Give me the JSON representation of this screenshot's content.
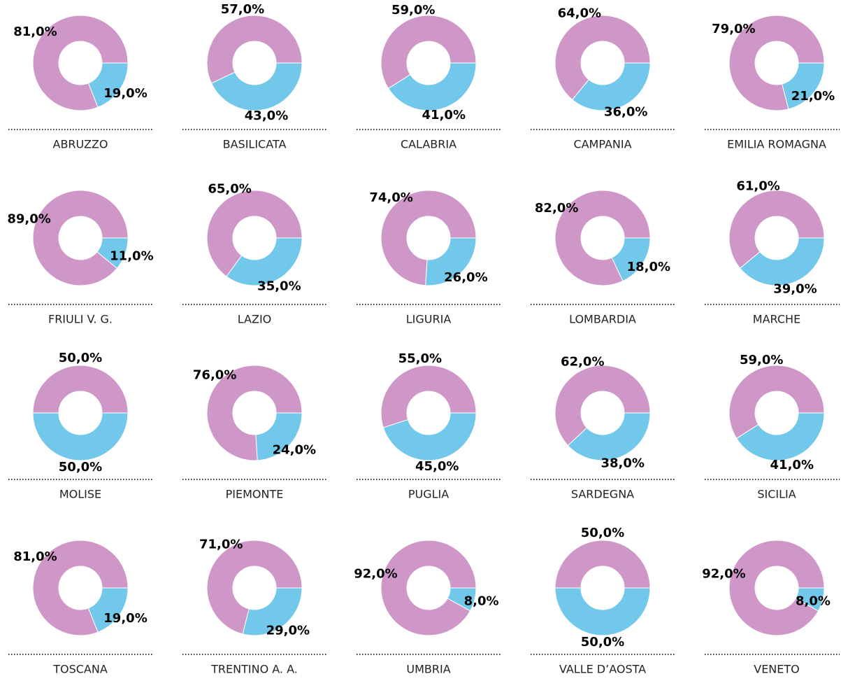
{
  "chart_data": [
    {
      "type": "donut",
      "title": "ABRUZZO",
      "values": [
        81,
        19
      ],
      "value_labels": [
        "81,0%",
        "19,0%"
      ],
      "colors": [
        "#cf97c7",
        "#72c8ea"
      ]
    },
    {
      "type": "donut",
      "title": "BASILICATA",
      "values": [
        57,
        43
      ],
      "value_labels": [
        "57,0%",
        "43,0%"
      ],
      "colors": [
        "#cf97c7",
        "#72c8ea"
      ]
    },
    {
      "type": "donut",
      "title": "CALABRIA",
      "values": [
        59,
        41
      ],
      "value_labels": [
        "59,0%",
        "41,0%"
      ],
      "colors": [
        "#cf97c7",
        "#72c8ea"
      ]
    },
    {
      "type": "donut",
      "title": "CAMPANIA",
      "values": [
        64,
        36
      ],
      "value_labels": [
        "64,0%",
        "36,0%"
      ],
      "colors": [
        "#cf97c7",
        "#72c8ea"
      ]
    },
    {
      "type": "donut",
      "title": "EMILIA ROMAGNA",
      "values": [
        79,
        21
      ],
      "value_labels": [
        "79,0%",
        "21,0%"
      ],
      "colors": [
        "#cf97c7",
        "#72c8ea"
      ]
    },
    {
      "type": "donut",
      "title": "FRIULI V. G.",
      "values": [
        89,
        11
      ],
      "value_labels": [
        "89,0%",
        "11,0%"
      ],
      "colors": [
        "#cf97c7",
        "#72c8ea"
      ]
    },
    {
      "type": "donut",
      "title": "LAZIO",
      "values": [
        65,
        35
      ],
      "value_labels": [
        "65,0%",
        "35,0%"
      ],
      "colors": [
        "#cf97c7",
        "#72c8ea"
      ]
    },
    {
      "type": "donut",
      "title": "LIGURIA",
      "values": [
        74,
        26
      ],
      "value_labels": [
        "74,0%",
        "26,0%"
      ],
      "colors": [
        "#cf97c7",
        "#72c8ea"
      ]
    },
    {
      "type": "donut",
      "title": "LOMBARDIA",
      "values": [
        82,
        18
      ],
      "value_labels": [
        "82,0%",
        "18,0%"
      ],
      "colors": [
        "#cf97c7",
        "#72c8ea"
      ]
    },
    {
      "type": "donut",
      "title": "MARCHE",
      "values": [
        61,
        39
      ],
      "value_labels": [
        "61,0%",
        "39,0%"
      ],
      "colors": [
        "#cf97c7",
        "#72c8ea"
      ]
    },
    {
      "type": "donut",
      "title": "MOLISE",
      "values": [
        50,
        50
      ],
      "value_labels": [
        "50,0%",
        "50,0%"
      ],
      "colors": [
        "#cf97c7",
        "#72c8ea"
      ]
    },
    {
      "type": "donut",
      "title": "PIEMONTE",
      "values": [
        76,
        24
      ],
      "value_labels": [
        "76,0%",
        "24,0%"
      ],
      "colors": [
        "#cf97c7",
        "#72c8ea"
      ]
    },
    {
      "type": "donut",
      "title": "PUGLIA",
      "values": [
        55,
        45
      ],
      "value_labels": [
        "55,0%",
        "45,0%"
      ],
      "colors": [
        "#cf97c7",
        "#72c8ea"
      ]
    },
    {
      "type": "donut",
      "title": "SARDEGNA",
      "values": [
        62,
        38
      ],
      "value_labels": [
        "62,0%",
        "38,0%"
      ],
      "colors": [
        "#cf97c7",
        "#72c8ea"
      ]
    },
    {
      "type": "donut",
      "title": "SICILIA",
      "values": [
        59,
        41
      ],
      "value_labels": [
        "59,0%",
        "41,0%"
      ],
      "colors": [
        "#cf97c7",
        "#72c8ea"
      ]
    },
    {
      "type": "donut",
      "title": "TOSCANA",
      "values": [
        81,
        19
      ],
      "value_labels": [
        "81,0%",
        "19,0%"
      ],
      "colors": [
        "#cf97c7",
        "#72c8ea"
      ]
    },
    {
      "type": "donut",
      "title": "TRENTINO A. A.",
      "values": [
        71,
        29
      ],
      "value_labels": [
        "71,0%",
        "29,0%"
      ],
      "colors": [
        "#cf97c7",
        "#72c8ea"
      ]
    },
    {
      "type": "donut",
      "title": "UMBRIA",
      "values": [
        92,
        8
      ],
      "value_labels": [
        "92,0%",
        "8,0%"
      ],
      "colors": [
        "#cf97c7",
        "#72c8ea"
      ]
    },
    {
      "type": "donut",
      "title": "VALLE D’AOSTA",
      "values": [
        50,
        50
      ],
      "value_labels": [
        "50,0%",
        "50,0%"
      ],
      "colors": [
        "#cf97c7",
        "#72c8ea"
      ]
    },
    {
      "type": "donut",
      "title": "VENETO",
      "values": [
        92,
        8
      ],
      "value_labels": [
        "92,0%",
        "8,0%"
      ],
      "colors": [
        "#cf97c7",
        "#72c8ea"
      ]
    }
  ]
}
